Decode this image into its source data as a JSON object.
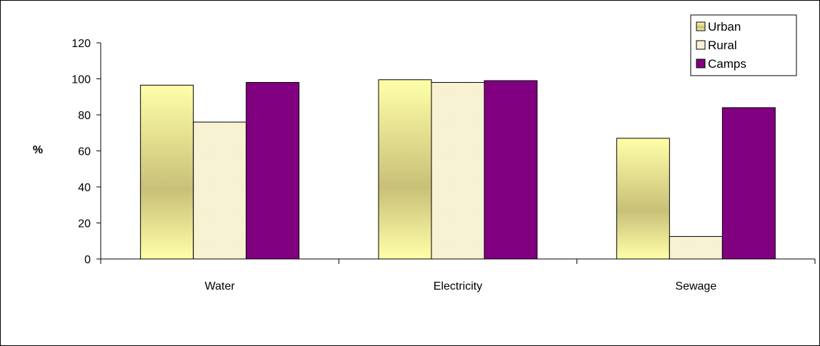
{
  "chart_data": {
    "type": "bar",
    "title": "",
    "xlabel": "",
    "ylabel": "%",
    "ylim": [
      0,
      120
    ],
    "yticks": [
      0,
      20,
      40,
      60,
      80,
      100,
      120
    ],
    "categories": [
      "Water",
      "Electricity",
      "Sewage"
    ],
    "series": [
      {
        "name": "Urban",
        "values": [
          96.5,
          99.5,
          67
        ],
        "color": "#f5f0a0"
      },
      {
        "name": "Rural",
        "values": [
          76,
          98,
          12.5
        ],
        "color": "#fbf6d6"
      },
      {
        "name": "Camps",
        "values": [
          98,
          99,
          84
        ],
        "color": "#800080"
      }
    ],
    "grid": false,
    "legend": "top-right"
  }
}
